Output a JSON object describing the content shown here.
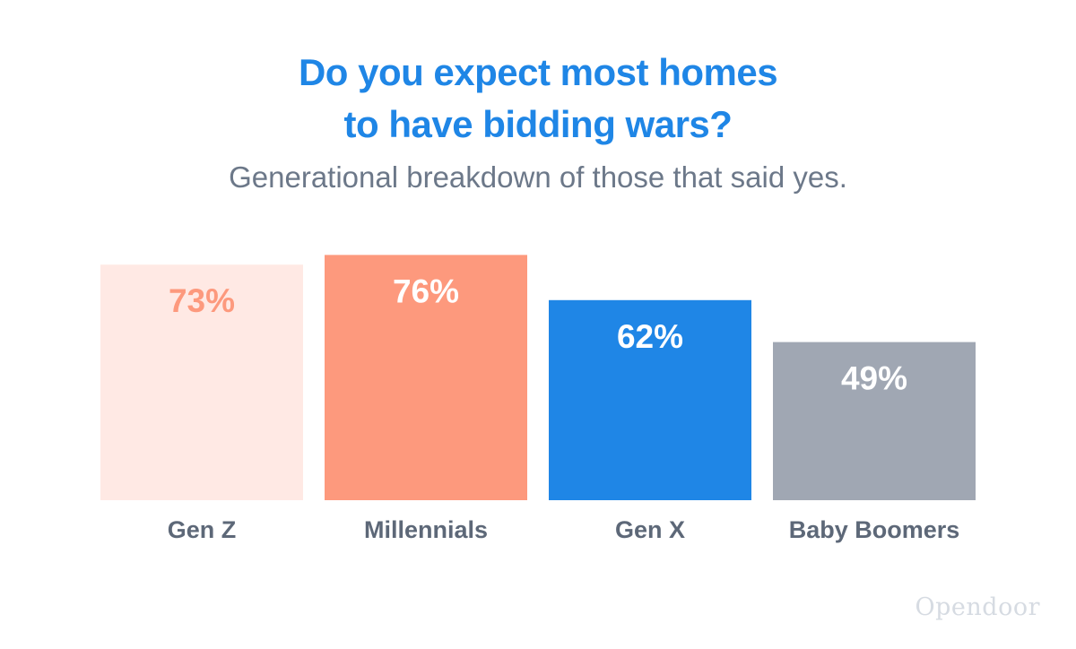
{
  "header": {
    "title_line1": "Do you expect most homes",
    "title_line2": "to have bidding wars?",
    "subtitle": "Generational breakdown of those that said yes."
  },
  "chart_data": {
    "type": "bar",
    "categories": [
      "Gen Z",
      "Millennials",
      "Gen X",
      "Baby Boomers"
    ],
    "values": [
      73,
      76,
      62,
      49
    ],
    "value_labels": [
      "73%",
      "76%",
      "62%",
      "49%"
    ],
    "unit": "%",
    "ylim": [
      0,
      100
    ],
    "grid": false,
    "legend": "none",
    "colors": {
      "bars": [
        "#ffe9e4",
        "#fd997d",
        "#1f86e6",
        "#a0a7b3"
      ],
      "value_text": [
        "#fd997d",
        "#ffffff",
        "#ffffff",
        "#ffffff"
      ]
    }
  },
  "footer": {
    "brand": "Opendoor"
  }
}
